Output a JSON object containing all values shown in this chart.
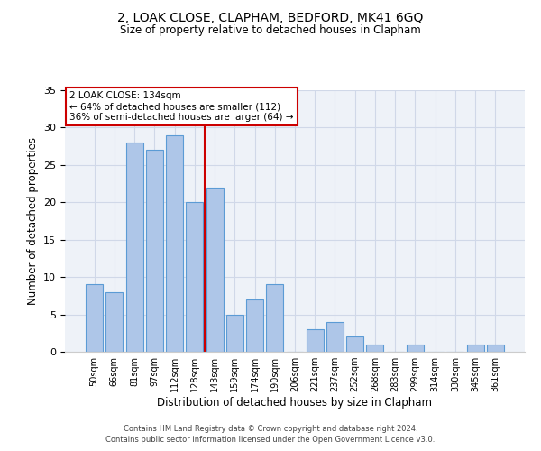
{
  "title1": "2, LOAK CLOSE, CLAPHAM, BEDFORD, MK41 6GQ",
  "title2": "Size of property relative to detached houses in Clapham",
  "xlabel": "Distribution of detached houses by size in Clapham",
  "ylabel": "Number of detached properties",
  "categories": [
    "50sqm",
    "66sqm",
    "81sqm",
    "97sqm",
    "112sqm",
    "128sqm",
    "143sqm",
    "159sqm",
    "174sqm",
    "190sqm",
    "206sqm",
    "221sqm",
    "237sqm",
    "252sqm",
    "268sqm",
    "283sqm",
    "299sqm",
    "314sqm",
    "330sqm",
    "345sqm",
    "361sqm"
  ],
  "values": [
    9,
    8,
    28,
    27,
    29,
    20,
    22,
    5,
    7,
    9,
    0,
    3,
    4,
    2,
    1,
    0,
    1,
    0,
    0,
    1,
    1
  ],
  "bar_color": "#aec6e8",
  "bar_edgecolor": "#5b9bd5",
  "vline_x": 5.5,
  "vline_color": "#cc0000",
  "annotation_lines": [
    "2 LOAK CLOSE: 134sqm",
    "← 64% of detached houses are smaller (112)",
    "36% of semi-detached houses are larger (64) →"
  ],
  "annotation_box_edgecolor": "#cc0000",
  "ylim": [
    0,
    35
  ],
  "yticks": [
    0,
    5,
    10,
    15,
    20,
    25,
    30,
    35
  ],
  "grid_color": "#d0d8e8",
  "bg_color": "#eef2f8",
  "footer1": "Contains HM Land Registry data © Crown copyright and database right 2024.",
  "footer2": "Contains public sector information licensed under the Open Government Licence v3.0."
}
